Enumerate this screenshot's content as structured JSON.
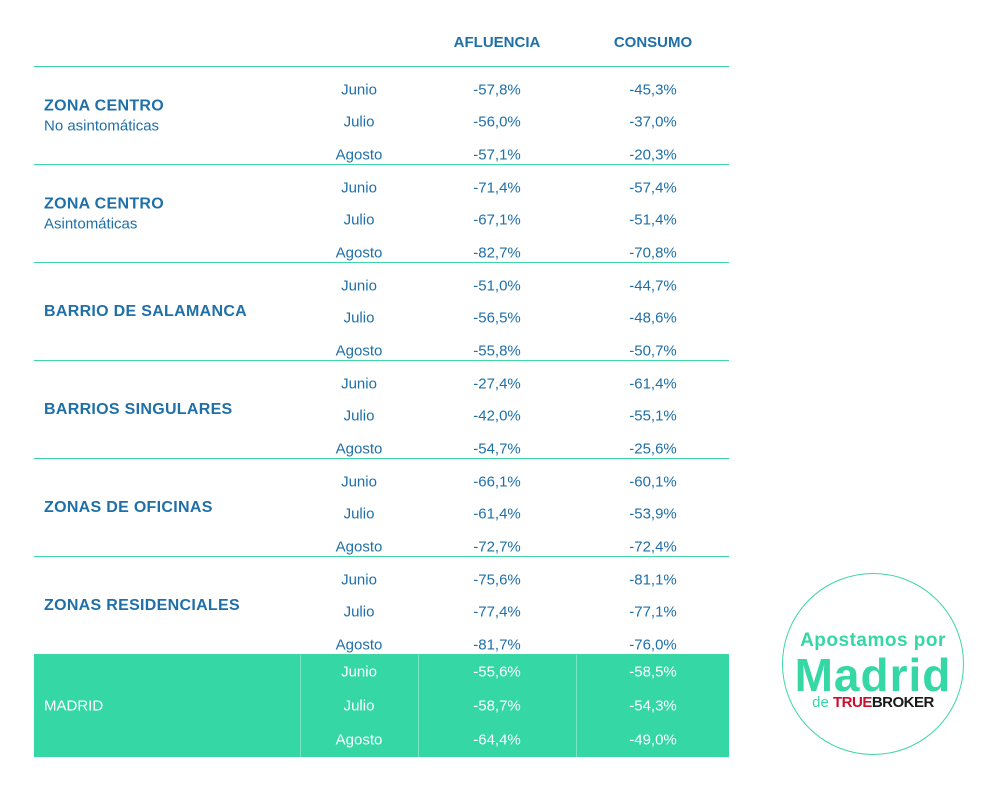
{
  "header": {
    "col_afluencia": "AFLUENCIA",
    "col_consumo": "CONSUMO"
  },
  "groups": [
    {
      "title": "ZONA CENTRO",
      "subtitle": "No asintomáticas",
      "rows": [
        {
          "month": "Junio",
          "afluencia": "-57,8%",
          "consumo": "-45,3%"
        },
        {
          "month": "Julio",
          "afluencia": "-56,0%",
          "consumo": "-37,0%"
        },
        {
          "month": "Agosto",
          "afluencia": "-57,1%",
          "consumo": "-20,3%"
        }
      ]
    },
    {
      "title": "ZONA CENTRO",
      "subtitle": "Asintomáticas",
      "rows": [
        {
          "month": "Junio",
          "afluencia": "-71,4%",
          "consumo": "-57,4%"
        },
        {
          "month": "Julio",
          "afluencia": "-67,1%",
          "consumo": "-51,4%"
        },
        {
          "month": "Agosto",
          "afluencia": "-82,7%",
          "consumo": "-70,8%"
        }
      ]
    },
    {
      "title": "BARRIO DE SALAMANCA",
      "subtitle": "",
      "rows": [
        {
          "month": "Junio",
          "afluencia": "-51,0%",
          "consumo": "-44,7%"
        },
        {
          "month": "Julio",
          "afluencia": "-56,5%",
          "consumo": "-48,6%"
        },
        {
          "month": "Agosto",
          "afluencia": "-55,8%",
          "consumo": "-50,7%"
        }
      ]
    },
    {
      "title": "BARRIOS SINGULARES",
      "subtitle": "",
      "rows": [
        {
          "month": "Junio",
          "afluencia": "-27,4%",
          "consumo": "-61,4%"
        },
        {
          "month": "Julio",
          "afluencia": "-42,0%",
          "consumo": "-55,1%"
        },
        {
          "month": "Agosto",
          "afluencia": "-54,7%",
          "consumo": "-25,6%"
        }
      ]
    },
    {
      "title": "ZONAS DE OFICINAS",
      "subtitle": "",
      "rows": [
        {
          "month": "Junio",
          "afluencia": "-66,1%",
          "consumo": "-60,1%"
        },
        {
          "month": "Julio",
          "afluencia": "-61,4%",
          "consumo": "-53,9%"
        },
        {
          "month": "Agosto",
          "afluencia": "-72,7%",
          "consumo": "-72,4%"
        }
      ]
    },
    {
      "title": "ZONAS RESIDENCIALES",
      "subtitle": "",
      "rows": [
        {
          "month": "Junio",
          "afluencia": "-75,6%",
          "consumo": "-81,1%"
        },
        {
          "month": "Julio",
          "afluencia": "-77,4%",
          "consumo": "-77,1%"
        },
        {
          "month": "Agosto",
          "afluencia": "-81,7%",
          "consumo": "-76,0%"
        }
      ]
    }
  ],
  "total": {
    "title": "MADRID",
    "rows": [
      {
        "month": "Junio",
        "afluencia": "-55,6%",
        "consumo": "-58,5%"
      },
      {
        "month": "Julio",
        "afluencia": "-58,7%",
        "consumo": "-54,3%"
      },
      {
        "month": "Agosto",
        "afluencia": "-64,4%",
        "consumo": "-49,0%"
      }
    ]
  },
  "badge": {
    "line1": "Apostamos por",
    "line2": "Madrid",
    "line3_prefix": "de",
    "brand_true": "TRUE",
    "brand_broker": "BROKER"
  },
  "colors": {
    "accent": "#35d7a4",
    "text": "#1f6fa8",
    "brand_red": "#c8102e"
  }
}
